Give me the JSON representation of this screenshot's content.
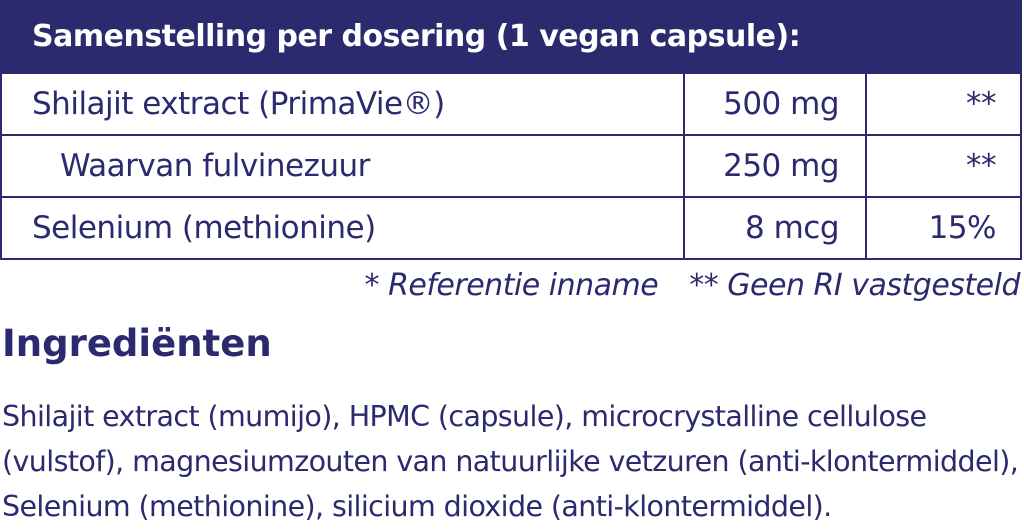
{
  "table": {
    "header": "Samenstelling per dosering (1 vegan capsule):",
    "rows": [
      {
        "name": "Shilajit extract (PrimaVie®)",
        "amount": "500 mg",
        "ri": "**"
      },
      {
        "name": "Waarvan fulvinezuur",
        "amount": "250 mg",
        "ri": "**"
      },
      {
        "name": "Selenium (methionine)",
        "amount": "8 mcg",
        "ri": "15%"
      }
    ]
  },
  "footnotes": {
    "ri": "* Referentie inname",
    "no_ri": "** Geen RI vastgesteld"
  },
  "ingredients": {
    "title": "Ingrediënten",
    "lines": [
      "Shilajit extract (mumijo), HPMC (capsule), microcrystalline cellulose",
      "(vulstof), magnesiumzouten van natuurlijke vetzuren (anti-klontermiddel),",
      "Selenium (methionine), silicium dioxide (anti-klontermiddel)."
    ]
  },
  "colors": {
    "brand": "#2b2a6e",
    "background": "#ffffff"
  }
}
